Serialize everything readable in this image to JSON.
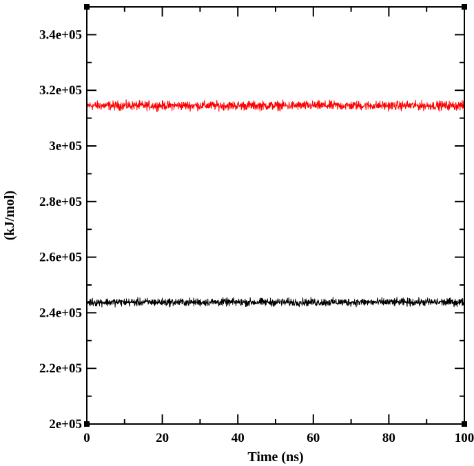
{
  "chart_data": {
    "type": "line",
    "title": "",
    "xlabel": "Time (ns)",
    "ylabel": "(kJ/mol)",
    "xlim": [
      0,
      100
    ],
    "ylim": [
      200000,
      350000
    ],
    "x_ticks": [
      0,
      20,
      40,
      60,
      80,
      100
    ],
    "x_tick_labels": [
      "0",
      "20",
      "40",
      "60",
      "80",
      "100"
    ],
    "y_ticks": [
      200000,
      220000,
      240000,
      260000,
      280000,
      300000,
      320000,
      340000
    ],
    "y_tick_labels": [
      "2e+05",
      "2.2e+05",
      "2.4e+05",
      "2.6e+05",
      "2.8e+05",
      "3e+05",
      "3.2e+05",
      "3.4e+05"
    ],
    "grid": false,
    "legend": "none",
    "series": [
      {
        "color": "#ff0000",
        "mean": 314500,
        "fluctuation": 1500,
        "x_start": 0,
        "x_end": 100
      },
      {
        "color": "#000000",
        "mean": 243800,
        "fluctuation": 1300,
        "x_start": 0,
        "x_end": 100
      }
    ]
  }
}
